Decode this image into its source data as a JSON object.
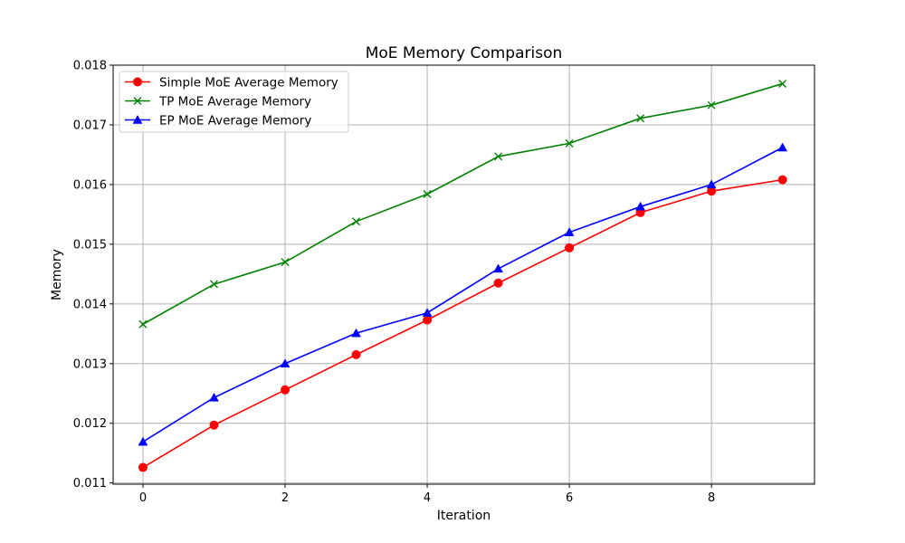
{
  "chart_data": {
    "type": "line",
    "title": "MoE Memory Comparison",
    "xlabel": "Iteration",
    "ylabel": "Memory",
    "xlim": [
      -0.42,
      9.45
    ],
    "ylim": [
      0.01098,
      0.018
    ],
    "xticks": [
      0,
      2,
      4,
      6,
      8
    ],
    "xtick_labels": [
      "0",
      "2",
      "4",
      "6",
      "8"
    ],
    "yticks": [
      0.011,
      0.012,
      0.013,
      0.014,
      0.015,
      0.016,
      0.017,
      0.018
    ],
    "ytick_labels": [
      "0.011",
      "0.012",
      "0.013",
      "0.014",
      "0.015",
      "0.016",
      "0.017",
      "0.018"
    ],
    "grid": true,
    "legend_position": "top-left",
    "x": [
      0,
      1,
      2,
      3,
      4,
      5,
      6,
      7,
      8,
      9
    ],
    "series": [
      {
        "name": "Simple MoE Average Memory",
        "color": "#ff0000",
        "marker": "circle",
        "values": [
          0.01126,
          0.01197,
          0.01256,
          0.01315,
          0.01373,
          0.01435,
          0.01494,
          0.01553,
          0.01589,
          0.01608
        ]
      },
      {
        "name": "TP MoE Average Memory",
        "color": "#008000",
        "marker": "x",
        "values": [
          0.01366,
          0.01433,
          0.0147,
          0.01538,
          0.01584,
          0.01647,
          0.01669,
          0.01711,
          0.01733,
          0.01769
        ]
      },
      {
        "name": "EP MoE Average Memory",
        "color": "#0000ff",
        "marker": "triangle",
        "values": [
          0.01169,
          0.01243,
          0.013,
          0.01351,
          0.01385,
          0.01459,
          0.0152,
          0.01563,
          0.016,
          0.01662
        ]
      }
    ]
  }
}
